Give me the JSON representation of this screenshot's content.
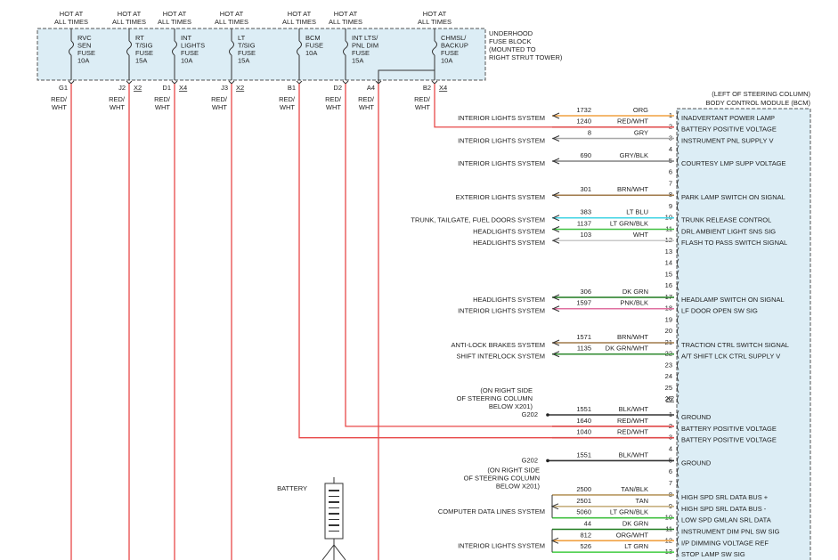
{
  "fuse_block": {
    "label": [
      "UNDERHOOD",
      "FUSE BLOCK",
      "(MOUNTED TO",
      "RIGHT STRUT TOWER)"
    ],
    "fuses": [
      {
        "hot": [
          "HOT AT",
          "ALL TIMES"
        ],
        "name": [
          "RVC",
          "SEN",
          "FUSE",
          "10A"
        ]
      },
      {
        "hot": [
          "HOT AT",
          "ALL TIMES"
        ],
        "name": [
          "RT",
          "T/SIG",
          "FUSE",
          "15A"
        ]
      },
      {
        "hot": [
          "HOT AT",
          "ALL TIMES"
        ],
        "name": [
          "INT",
          "LIGHTS",
          "FUSE",
          "10A"
        ]
      },
      {
        "hot": [
          "HOT AT",
          "ALL TIMES"
        ],
        "name": [
          "LT",
          "T/SIG",
          "FUSE",
          "15A"
        ]
      },
      {
        "hot": [
          "HOT AT",
          "ALL TIMES"
        ],
        "name": [
          "BCM",
          "FUSE",
          "10A"
        ]
      },
      {
        "hot": [
          "HOT AT",
          "ALL TIMES"
        ],
        "name": [
          "INT LTS/",
          "PNL DIM",
          "FUSE",
          "15A"
        ]
      },
      {
        "hot": [
          "HOT AT",
          "ALL TIMES"
        ],
        "name": [
          "CHMSL/",
          "BACKUP",
          "FUSE",
          "10A"
        ]
      }
    ],
    "outputs": [
      {
        "pin": "G1",
        "wire": [
          "RED/",
          "WHT"
        ]
      },
      {
        "pin": "J2",
        "connector": "X2",
        "wire": [
          "RED/",
          "WHT"
        ]
      },
      {
        "pin": "D1",
        "connector": "X4",
        "wire": [
          "RED/",
          "WHT"
        ]
      },
      {
        "pin": "J3",
        "connector": "X2",
        "wire": [
          "RED/",
          "WHT"
        ]
      },
      {
        "pin": "B1",
        "wire": [
          "RED/",
          "WHT"
        ]
      },
      {
        "pin": "D2",
        "wire": [
          "RED/",
          "WHT"
        ]
      },
      {
        "pin": "A4",
        "wire": [
          "RED/",
          "WHT"
        ]
      },
      {
        "pin": "B2",
        "connector": "X4",
        "wire": [
          "RED/",
          "WHT"
        ]
      }
    ]
  },
  "bcm": {
    "label": [
      "(LEFT OF STEERING COLUMN)",
      "BODY CONTROL MODULE (BCM)"
    ],
    "connector1": [
      {
        "pin": 1,
        "system": "INTERIOR LIGHTS SYSTEM",
        "circuit": 1732,
        "wire": "ORG",
        "color": "#f0a040",
        "function": "INADVERTANT POWER LAMP"
      },
      {
        "pin": 2,
        "circuit": 1240,
        "wire": "RED/WHT",
        "color": "#e04848",
        "function": "BATTERY POSITIVE VOLTAGE"
      },
      {
        "pin": 3,
        "system": "INTERIOR LIGHTS SYSTEM",
        "circuit": 8,
        "wire": "GRY",
        "color": "#a8a8a8",
        "function": "INSTRUMENT PNL SUPPLY V"
      },
      {
        "pin": 4
      },
      {
        "pin": 5,
        "system": "INTERIOR LIGHTS SYSTEM",
        "circuit": 690,
        "wire": "GRY/BLK",
        "color": "#808080",
        "function": "COURTESY LMP SUPP VOLTAGE"
      },
      {
        "pin": 6
      },
      {
        "pin": 7
      },
      {
        "pin": 8,
        "system": "EXTERIOR LIGHTS SYSTEM",
        "circuit": 301,
        "wire": "BRN/WHT",
        "color": "#a07a4a",
        "function": "PARK LAMP SWITCH ON SIGNAL"
      },
      {
        "pin": 9
      },
      {
        "pin": 10,
        "system": "TRUNK, TAILGATE, FUEL DOORS SYSTEM",
        "circuit": 383,
        "wire": "LT BLU",
        "color": "#40d4e4",
        "function": "TRUNK RELEASE CONTROL"
      },
      {
        "pin": 11,
        "system": "HEADLIGHTS SYSTEM",
        "circuit": 1137,
        "wire": "LT GRN/BLK",
        "color": "#40c040",
        "function": "DRL AMBIENT LIGHT SNS SIG"
      },
      {
        "pin": 12,
        "system": "HEADLIGHTS SYSTEM",
        "circuit": 103,
        "wire": "WHT",
        "color": "#c8c8c8",
        "function": "FLASH TO PASS SWITCH SIGNAL"
      },
      {
        "pin": 13
      },
      {
        "pin": 14
      },
      {
        "pin": 15
      },
      {
        "pin": 16
      },
      {
        "pin": 17,
        "system": "HEADLIGHTS SYSTEM",
        "circuit": 306,
        "wire": "DK GRN",
        "color": "#1e7a1e",
        "function": "HEADLAMP SWITCH ON SIGNAL"
      },
      {
        "pin": 18,
        "system": "INTERIOR LIGHTS SYSTEM",
        "circuit": 1597,
        "wire": "PNK/BLK",
        "color": "#e070a0",
        "function": "LF DOOR OPEN SW SIG"
      },
      {
        "pin": 19
      },
      {
        "pin": 20
      },
      {
        "pin": 21,
        "system": "ANTI-LOCK BRAKES SYSTEM",
        "circuit": 1571,
        "wire": "BRN/WHT",
        "color": "#a07a4a",
        "function": "TRACTION CTRL SWITCH SIGNAL"
      },
      {
        "pin": 22,
        "system": "SHIFT INTERLOCK SYSTEM",
        "circuit": 1135,
        "wire": "DK GRN/WHT",
        "color": "#2e8a2e",
        "function": "A/T SHIFT LCK CTRL SUPPLY V"
      },
      {
        "pin": 23
      },
      {
        "pin": 24
      },
      {
        "pin": 25
      },
      {
        "pin": 26
      }
    ],
    "connector2_name": "X2",
    "connector2": [
      {
        "pin": 1,
        "ground": "G202",
        "ground_note": [
          "(ON RIGHT SIDE",
          "OF STEERING COLUMN",
          "BELOW X201)"
        ],
        "circuit": 1551,
        "wire": "BLK/WHT",
        "color": "#333333",
        "function": "GROUND"
      },
      {
        "pin": 2,
        "circuit": 1640,
        "wire": "RED/WHT",
        "color": "#e04848",
        "function": "BATTERY POSITIVE VOLTAGE"
      },
      {
        "pin": 3,
        "circuit": 1040,
        "wire": "RED/WHT",
        "color": "#e04848",
        "function": "BATTERY POSITIVE VOLTAGE"
      },
      {
        "pin": 4
      },
      {
        "pin": 5,
        "ground": "G202",
        "ground_note": [
          "(ON RIGHT SIDE",
          "OF STEERING COLUMN",
          "BELOW X201)"
        ],
        "circuit": 1551,
        "wire": "BLK/WHT",
        "color": "#333333",
        "function": "GROUND"
      },
      {
        "pin": 6
      },
      {
        "pin": 7
      },
      {
        "pin": 8,
        "circuit": 2500,
        "wire": "TAN/BLK",
        "color": "#b89860",
        "function": "HIGH SPD SRL DATA BUS +"
      },
      {
        "pin": 9,
        "system": "COMPUTER DATA LINES SYSTEM",
        "circuit": 2501,
        "wire": "TAN",
        "color": "#c8b080",
        "function": "HIGH SPD SRL DATA BUS -"
      },
      {
        "pin": 10,
        "circuit": 5060,
        "wire": "LT GRN/BLK",
        "color": "#40c040",
        "function": "LOW SPD GMLAN SRL DATA"
      },
      {
        "pin": 11,
        "circuit": 44,
        "wire": "DK GRN",
        "color": "#1e7a1e",
        "function": "INSTRUMENT DIM PNL SW SIG"
      },
      {
        "pin": 12,
        "system": "INTERIOR LIGHTS SYSTEM",
        "circuit": 812,
        "wire": "ORG/WHT",
        "color": "#f0a040",
        "function": "I/P DIMMING VOLTAGE REF"
      },
      {
        "pin": 13,
        "circuit": 526,
        "wire": "LT GRN",
        "color": "#50d050",
        "function": "STOP LAMP SW SIG"
      }
    ]
  },
  "battery": "BATTERY"
}
